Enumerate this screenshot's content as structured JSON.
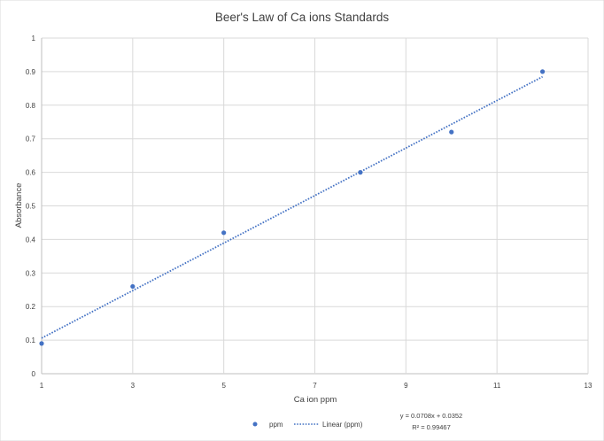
{
  "chart_data": {
    "type": "scatter",
    "title": "Beer's Law of Ca ions Standards",
    "xlabel": "Ca ion ppm",
    "ylabel": "Absorbance",
    "xlim": [
      1,
      13
    ],
    "ylim": [
      0,
      1
    ],
    "x_ticks": [
      "1",
      "3",
      "5",
      "7",
      "9",
      "11",
      "13"
    ],
    "y_ticks": [
      "0",
      "0.1",
      "0.2",
      "0.3",
      "0.4",
      "0.5",
      "0.6",
      "0.7",
      "0.8",
      "0.9",
      "1"
    ],
    "grid": true,
    "legend_position": "bottom",
    "series": [
      {
        "name": "ppm",
        "color": "#4472c4",
        "points": [
          {
            "x": 1,
            "y": 0.09
          },
          {
            "x": 3,
            "y": 0.26
          },
          {
            "x": 5,
            "y": 0.42
          },
          {
            "x": 8,
            "y": 0.6
          },
          {
            "x": 10,
            "y": 0.72
          },
          {
            "x": 12,
            "y": 0.9
          }
        ]
      }
    ],
    "trendline": {
      "name": "Linear  (ppm)",
      "type": "linear",
      "slope": 0.0708,
      "intercept": 0.0352,
      "x_range": [
        1,
        12
      ],
      "style": "dotted",
      "color": "#4472c4",
      "equation_label": "y = 0.0708x + 0.0352",
      "r2_label": "R² = 0.99467"
    }
  }
}
